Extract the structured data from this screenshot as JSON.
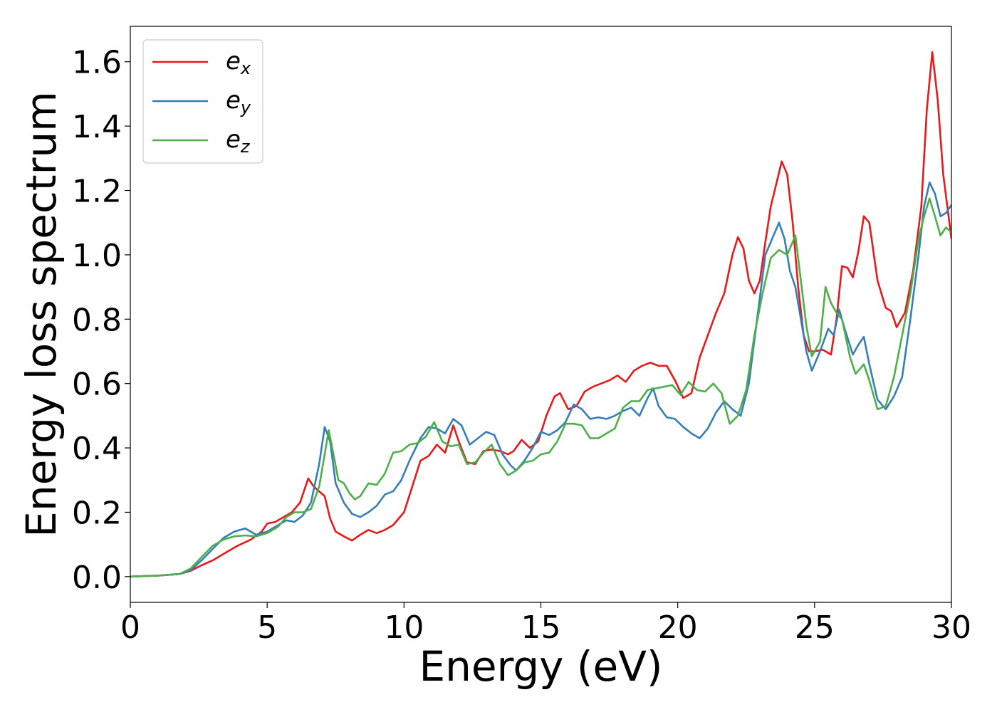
{
  "chart_data": {
    "type": "line",
    "title": "",
    "xlabel": "Energy (eV)",
    "ylabel": "Energy loss spectrum",
    "xlim": [
      0,
      30
    ],
    "ylim": [
      -0.08,
      1.71
    ],
    "xticks": [
      0,
      5,
      10,
      15,
      20,
      25,
      30
    ],
    "yticks": [
      0.0,
      0.2,
      0.4,
      0.6,
      0.8,
      1.0,
      1.2,
      1.4,
      1.6
    ],
    "xtick_labels": [
      "0",
      "5",
      "10",
      "15",
      "20",
      "25",
      "30"
    ],
    "ytick_labels": [
      "0.0",
      "0.2",
      "0.4",
      "0.6",
      "0.8",
      "1.0",
      "1.2",
      "1.4",
      "1.6"
    ],
    "grid": false,
    "legend_position": "top-left",
    "series": [
      {
        "name": "e_x",
        "label_base": "e",
        "label_sub": "x",
        "color": "#e41a1c",
        "points": [
          [
            0,
            0
          ],
          [
            1,
            0.003
          ],
          [
            1.8,
            0.008
          ],
          [
            2.2,
            0.018
          ],
          [
            2.6,
            0.035
          ],
          [
            3.0,
            0.05
          ],
          [
            3.5,
            0.075
          ],
          [
            3.9,
            0.095
          ],
          [
            4.4,
            0.115
          ],
          [
            4.8,
            0.14
          ],
          [
            5.0,
            0.165
          ],
          [
            5.3,
            0.17
          ],
          [
            5.6,
            0.185
          ],
          [
            5.9,
            0.2
          ],
          [
            6.2,
            0.23
          ],
          [
            6.5,
            0.305
          ],
          [
            6.7,
            0.28
          ],
          [
            6.9,
            0.265
          ],
          [
            7.1,
            0.25
          ],
          [
            7.3,
            0.18
          ],
          [
            7.5,
            0.14
          ],
          [
            7.8,
            0.125
          ],
          [
            8.1,
            0.112
          ],
          [
            8.4,
            0.13
          ],
          [
            8.7,
            0.145
          ],
          [
            9.0,
            0.135
          ],
          [
            9.3,
            0.145
          ],
          [
            9.6,
            0.16
          ],
          [
            10.0,
            0.2
          ],
          [
            10.3,
            0.28
          ],
          [
            10.6,
            0.36
          ],
          [
            10.9,
            0.375
          ],
          [
            11.2,
            0.41
          ],
          [
            11.5,
            0.385
          ],
          [
            11.8,
            0.47
          ],
          [
            12.0,
            0.42
          ],
          [
            12.3,
            0.355
          ],
          [
            12.6,
            0.35
          ],
          [
            12.9,
            0.39
          ],
          [
            13.2,
            0.395
          ],
          [
            13.5,
            0.39
          ],
          [
            13.8,
            0.38
          ],
          [
            14.0,
            0.39
          ],
          [
            14.3,
            0.425
          ],
          [
            14.6,
            0.4
          ],
          [
            14.9,
            0.42
          ],
          [
            15.2,
            0.5
          ],
          [
            15.5,
            0.56
          ],
          [
            15.7,
            0.57
          ],
          [
            16.0,
            0.52
          ],
          [
            16.3,
            0.53
          ],
          [
            16.6,
            0.575
          ],
          [
            16.9,
            0.59
          ],
          [
            17.2,
            0.6
          ],
          [
            17.5,
            0.61
          ],
          [
            17.8,
            0.625
          ],
          [
            18.1,
            0.605
          ],
          [
            18.4,
            0.64
          ],
          [
            18.7,
            0.655
          ],
          [
            19.0,
            0.665
          ],
          [
            19.3,
            0.655
          ],
          [
            19.6,
            0.655
          ],
          [
            19.9,
            0.61
          ],
          [
            20.2,
            0.555
          ],
          [
            20.5,
            0.57
          ],
          [
            20.8,
            0.68
          ],
          [
            21.1,
            0.75
          ],
          [
            21.4,
            0.82
          ],
          [
            21.7,
            0.88
          ],
          [
            22.0,
            1.0
          ],
          [
            22.2,
            1.055
          ],
          [
            22.4,
            1.02
          ],
          [
            22.6,
            0.92
          ],
          [
            22.8,
            0.88
          ],
          [
            23.0,
            0.92
          ],
          [
            23.2,
            1.04
          ],
          [
            23.4,
            1.15
          ],
          [
            23.6,
            1.22
          ],
          [
            23.8,
            1.29
          ],
          [
            24.0,
            1.25
          ],
          [
            24.2,
            1.1
          ],
          [
            24.4,
            0.9
          ],
          [
            24.6,
            0.75
          ],
          [
            24.8,
            0.7
          ],
          [
            25.0,
            0.7
          ],
          [
            25.3,
            0.705
          ],
          [
            25.6,
            0.69
          ],
          [
            25.8,
            0.8
          ],
          [
            26.0,
            0.965
          ],
          [
            26.2,
            0.96
          ],
          [
            26.4,
            0.93
          ],
          [
            26.6,
            1.01
          ],
          [
            26.8,
            1.12
          ],
          [
            27.0,
            1.1
          ],
          [
            27.3,
            0.92
          ],
          [
            27.6,
            0.835
          ],
          [
            27.8,
            0.825
          ],
          [
            28.0,
            0.775
          ],
          [
            28.3,
            0.82
          ],
          [
            28.6,
            0.95
          ],
          [
            28.9,
            1.15
          ],
          [
            29.1,
            1.45
          ],
          [
            29.3,
            1.63
          ],
          [
            29.5,
            1.48
          ],
          [
            29.7,
            1.25
          ],
          [
            30.0,
            1.05
          ]
        ]
      },
      {
        "name": "e_y",
        "label_base": "e",
        "label_sub": "y",
        "color": "#377eb8",
        "points": [
          [
            0,
            0
          ],
          [
            1,
            0.003
          ],
          [
            1.8,
            0.008
          ],
          [
            2.2,
            0.02
          ],
          [
            2.6,
            0.05
          ],
          [
            3.0,
            0.085
          ],
          [
            3.4,
            0.12
          ],
          [
            3.8,
            0.14
          ],
          [
            4.2,
            0.15
          ],
          [
            4.6,
            0.13
          ],
          [
            5.0,
            0.14
          ],
          [
            5.4,
            0.16
          ],
          [
            5.7,
            0.175
          ],
          [
            6.0,
            0.17
          ],
          [
            6.3,
            0.19
          ],
          [
            6.6,
            0.23
          ],
          [
            6.9,
            0.35
          ],
          [
            7.1,
            0.465
          ],
          [
            7.3,
            0.42
          ],
          [
            7.5,
            0.29
          ],
          [
            7.8,
            0.23
          ],
          [
            8.1,
            0.195
          ],
          [
            8.4,
            0.185
          ],
          [
            8.7,
            0.2
          ],
          [
            9.0,
            0.22
          ],
          [
            9.3,
            0.255
          ],
          [
            9.6,
            0.265
          ],
          [
            9.9,
            0.3
          ],
          [
            10.2,
            0.36
          ],
          [
            10.6,
            0.43
          ],
          [
            10.9,
            0.465
          ],
          [
            11.2,
            0.46
          ],
          [
            11.5,
            0.445
          ],
          [
            11.8,
            0.49
          ],
          [
            12.1,
            0.47
          ],
          [
            12.4,
            0.41
          ],
          [
            12.7,
            0.43
          ],
          [
            13.0,
            0.45
          ],
          [
            13.3,
            0.44
          ],
          [
            13.6,
            0.38
          ],
          [
            13.9,
            0.345
          ],
          [
            14.1,
            0.33
          ],
          [
            14.4,
            0.36
          ],
          [
            14.7,
            0.4
          ],
          [
            15.0,
            0.45
          ],
          [
            15.3,
            0.44
          ],
          [
            15.6,
            0.455
          ],
          [
            15.9,
            0.48
          ],
          [
            16.2,
            0.535
          ],
          [
            16.5,
            0.52
          ],
          [
            16.8,
            0.49
          ],
          [
            17.1,
            0.495
          ],
          [
            17.4,
            0.49
          ],
          [
            17.7,
            0.5
          ],
          [
            18.0,
            0.515
          ],
          [
            18.3,
            0.525
          ],
          [
            18.6,
            0.5
          ],
          [
            18.9,
            0.555
          ],
          [
            19.1,
            0.585
          ],
          [
            19.3,
            0.53
          ],
          [
            19.6,
            0.495
          ],
          [
            19.9,
            0.49
          ],
          [
            20.2,
            0.465
          ],
          [
            20.5,
            0.445
          ],
          [
            20.8,
            0.43
          ],
          [
            21.1,
            0.46
          ],
          [
            21.4,
            0.51
          ],
          [
            21.7,
            0.545
          ],
          [
            22.0,
            0.52
          ],
          [
            22.3,
            0.5
          ],
          [
            22.6,
            0.6
          ],
          [
            22.9,
            0.8
          ],
          [
            23.2,
            1.0
          ],
          [
            23.5,
            1.06
          ],
          [
            23.7,
            1.1
          ],
          [
            23.9,
            1.05
          ],
          [
            24.1,
            0.95
          ],
          [
            24.3,
            0.9
          ],
          [
            24.5,
            0.8
          ],
          [
            24.7,
            0.7
          ],
          [
            24.9,
            0.64
          ],
          [
            25.2,
            0.7
          ],
          [
            25.5,
            0.77
          ],
          [
            25.7,
            0.75
          ],
          [
            25.9,
            0.83
          ],
          [
            26.1,
            0.77
          ],
          [
            26.4,
            0.69
          ],
          [
            26.6,
            0.72
          ],
          [
            26.8,
            0.745
          ],
          [
            27.0,
            0.66
          ],
          [
            27.3,
            0.55
          ],
          [
            27.6,
            0.52
          ],
          [
            27.9,
            0.56
          ],
          [
            28.2,
            0.62
          ],
          [
            28.5,
            0.8
          ],
          [
            28.8,
            1.0
          ],
          [
            29.0,
            1.15
          ],
          [
            29.2,
            1.225
          ],
          [
            29.4,
            1.19
          ],
          [
            29.6,
            1.12
          ],
          [
            29.8,
            1.13
          ],
          [
            30.0,
            1.155
          ]
        ]
      },
      {
        "name": "e_z",
        "label_base": "e",
        "label_sub": "z",
        "color": "#4daf4a",
        "points": [
          [
            0,
            0
          ],
          [
            1,
            0.003
          ],
          [
            1.8,
            0.008
          ],
          [
            2.2,
            0.025
          ],
          [
            2.6,
            0.06
          ],
          [
            3.0,
            0.095
          ],
          [
            3.4,
            0.115
          ],
          [
            3.8,
            0.125
          ],
          [
            4.2,
            0.128
          ],
          [
            4.6,
            0.125
          ],
          [
            5.0,
            0.135
          ],
          [
            5.4,
            0.155
          ],
          [
            5.7,
            0.185
          ],
          [
            6.0,
            0.2
          ],
          [
            6.3,
            0.2
          ],
          [
            6.6,
            0.21
          ],
          [
            6.9,
            0.28
          ],
          [
            7.1,
            0.38
          ],
          [
            7.25,
            0.455
          ],
          [
            7.4,
            0.39
          ],
          [
            7.6,
            0.3
          ],
          [
            7.8,
            0.29
          ],
          [
            8.0,
            0.26
          ],
          [
            8.2,
            0.24
          ],
          [
            8.4,
            0.25
          ],
          [
            8.7,
            0.29
          ],
          [
            9.0,
            0.285
          ],
          [
            9.3,
            0.32
          ],
          [
            9.6,
            0.385
          ],
          [
            9.9,
            0.39
          ],
          [
            10.2,
            0.41
          ],
          [
            10.5,
            0.415
          ],
          [
            10.8,
            0.435
          ],
          [
            11.1,
            0.48
          ],
          [
            11.4,
            0.42
          ],
          [
            11.7,
            0.405
          ],
          [
            12.0,
            0.41
          ],
          [
            12.3,
            0.35
          ],
          [
            12.6,
            0.355
          ],
          [
            12.9,
            0.385
          ],
          [
            13.2,
            0.41
          ],
          [
            13.5,
            0.35
          ],
          [
            13.8,
            0.315
          ],
          [
            14.1,
            0.33
          ],
          [
            14.4,
            0.355
          ],
          [
            14.7,
            0.36
          ],
          [
            15.0,
            0.38
          ],
          [
            15.3,
            0.385
          ],
          [
            15.6,
            0.42
          ],
          [
            15.9,
            0.475
          ],
          [
            16.2,
            0.475
          ],
          [
            16.5,
            0.47
          ],
          [
            16.8,
            0.43
          ],
          [
            17.1,
            0.43
          ],
          [
            17.4,
            0.445
          ],
          [
            17.7,
            0.46
          ],
          [
            18.0,
            0.525
          ],
          [
            18.3,
            0.545
          ],
          [
            18.6,
            0.545
          ],
          [
            18.9,
            0.58
          ],
          [
            19.2,
            0.585
          ],
          [
            19.5,
            0.59
          ],
          [
            19.8,
            0.595
          ],
          [
            20.1,
            0.565
          ],
          [
            20.4,
            0.605
          ],
          [
            20.7,
            0.58
          ],
          [
            21.0,
            0.575
          ],
          [
            21.3,
            0.6
          ],
          [
            21.6,
            0.57
          ],
          [
            21.9,
            0.475
          ],
          [
            22.2,
            0.5
          ],
          [
            22.5,
            0.58
          ],
          [
            22.8,
            0.75
          ],
          [
            23.1,
            0.88
          ],
          [
            23.4,
            0.99
          ],
          [
            23.7,
            1.015
          ],
          [
            24.0,
            1.0
          ],
          [
            24.3,
            1.06
          ],
          [
            24.5,
            0.92
          ],
          [
            24.7,
            0.78
          ],
          [
            24.9,
            0.685
          ],
          [
            25.2,
            0.73
          ],
          [
            25.4,
            0.9
          ],
          [
            25.6,
            0.85
          ],
          [
            25.8,
            0.82
          ],
          [
            26.0,
            0.8
          ],
          [
            26.3,
            0.68
          ],
          [
            26.5,
            0.63
          ],
          [
            26.8,
            0.66
          ],
          [
            27.0,
            0.61
          ],
          [
            27.3,
            0.52
          ],
          [
            27.6,
            0.53
          ],
          [
            27.9,
            0.62
          ],
          [
            28.2,
            0.75
          ],
          [
            28.5,
            0.88
          ],
          [
            28.8,
            1.05
          ],
          [
            29.0,
            1.12
          ],
          [
            29.2,
            1.175
          ],
          [
            29.4,
            1.12
          ],
          [
            29.6,
            1.06
          ],
          [
            29.8,
            1.085
          ],
          [
            30.0,
            1.07
          ]
        ]
      }
    ]
  }
}
